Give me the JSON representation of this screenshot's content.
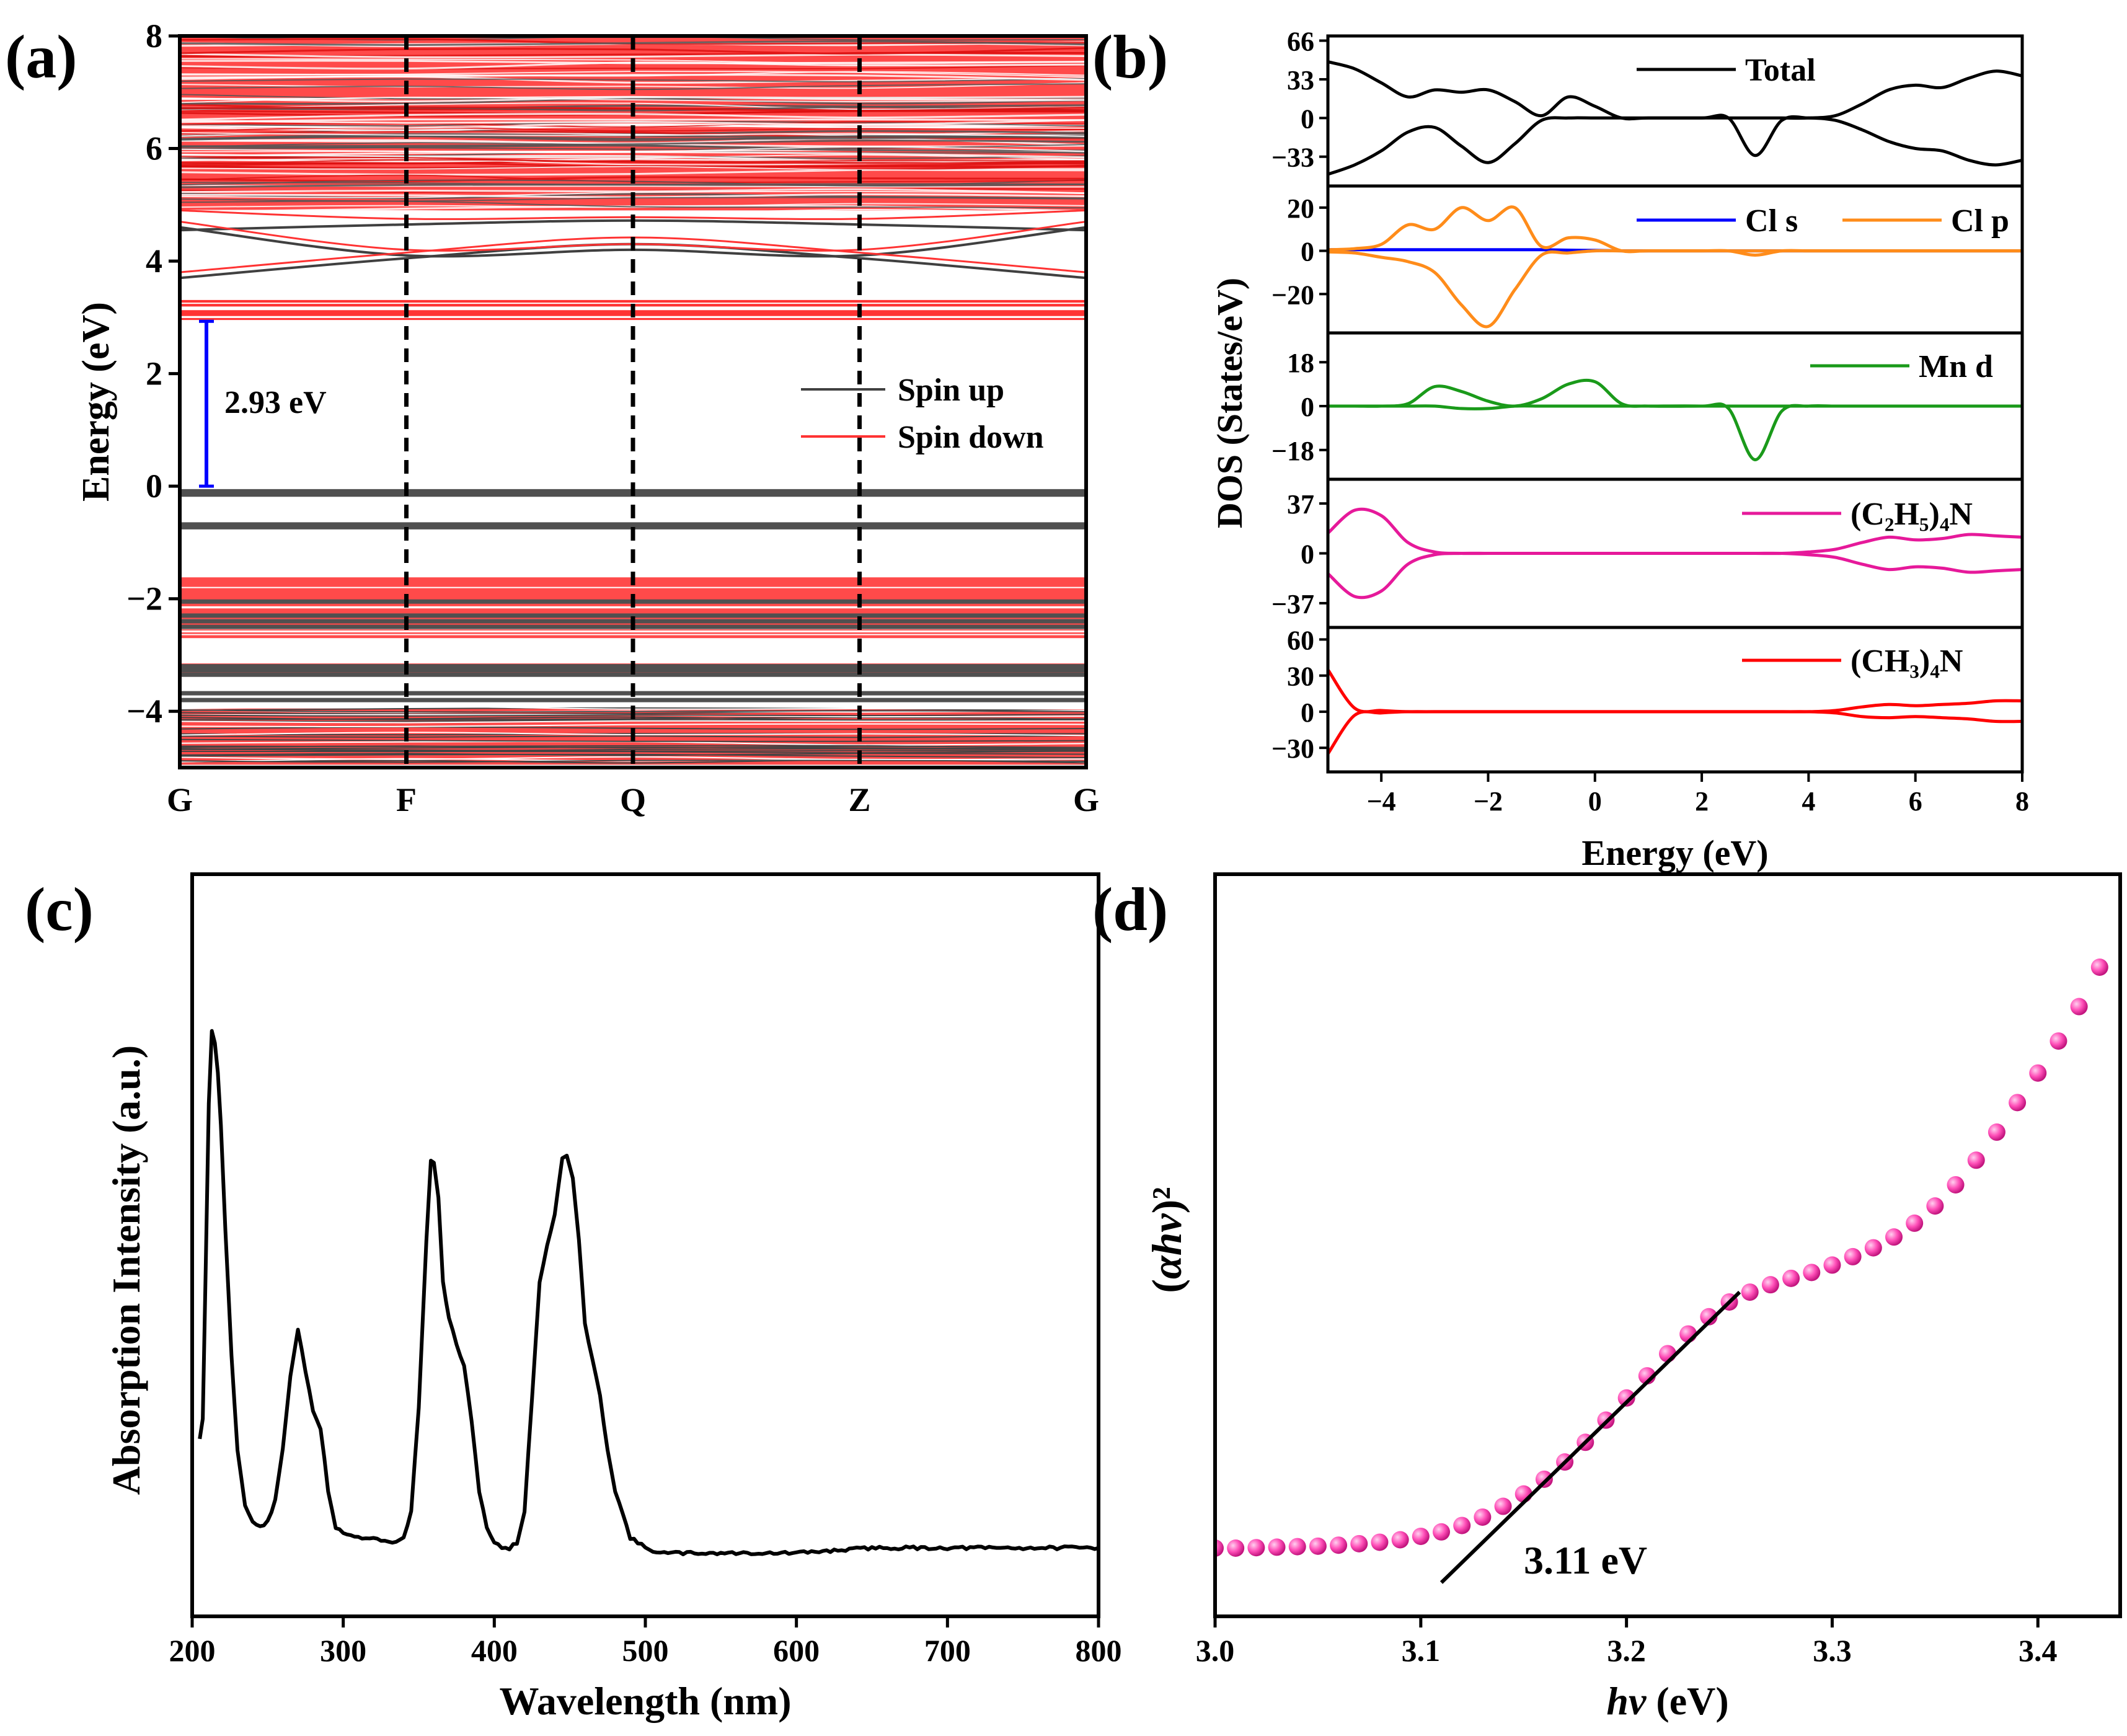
{
  "chart_data": [
    {
      "panel": "(a)",
      "type": "line",
      "title": "",
      "xlabel": "",
      "ylabel": "Energy (eV)",
      "ylim": [
        -5,
        8
      ],
      "yticks": [
        -4,
        -2,
        0,
        2,
        4,
        6,
        8
      ],
      "ytick_labels": [
        "−4",
        "−2",
        "0",
        "2",
        "4",
        "6",
        "8"
      ],
      "kpoints": [
        "G",
        "F",
        "Q",
        "Z",
        "G"
      ],
      "kpoint_dividers": [
        "F",
        "Q",
        "Z"
      ],
      "legend": [
        {
          "name": "Spin up",
          "color": "#404040"
        },
        {
          "name": "Spin down",
          "color": "#ff3333"
        }
      ],
      "gap": {
        "label": "2.93 eV",
        "from": 0,
        "to": 2.93,
        "color": "#0000ff"
      },
      "valence_bands": {
        "spin_down": [
          [
            -4.95,
            -3.95
          ],
          [
            -3.38,
            -3.15
          ],
          [
            -2.7,
            -1.62
          ]
        ],
        "spin_up": [
          -0.15,
          -0.09,
          -0.73,
          -0.68,
          -2.05,
          -2.3,
          -2.4,
          -2.5,
          -3.2,
          -3.27,
          -3.35,
          -3.68,
          -3.8
        ]
      },
      "flat_bands": {
        "spin_down": [
          2.98,
          3.05,
          3.1,
          3.22,
          3.28
        ],
        "spin_up": [
          3.0,
          3.15,
          3.25
        ]
      },
      "dispersive_bands": {
        "spin_up": [
          [
            3.7,
            4.05,
            4.3,
            4.05,
            3.7
          ],
          [
            4.55,
            4.65,
            4.72,
            4.65,
            4.55
          ],
          [
            4.6,
            4.1,
            4.2,
            4.1,
            4.6
          ]
        ],
        "spin_down": [
          [
            3.8,
            4.15,
            4.42,
            4.15,
            3.8
          ],
          [
            4.9,
            4.75,
            4.78,
            4.75,
            4.9
          ],
          [
            4.7,
            4.2,
            4.3,
            4.2,
            4.7
          ]
        ]
      },
      "conduction_band_region": [
        4.9,
        8.0
      ]
    },
    {
      "panel": "(b)",
      "type": "line",
      "title": "",
      "xlabel": "Energy (eV)",
      "ylabel": "DOS (States/eV)",
      "xlim": [
        -5,
        8
      ],
      "xticks": [
        -4,
        -2,
        0,
        2,
        4,
        6,
        8
      ],
      "xtick_labels": [
        "−4",
        "−2",
        "0",
        "2",
        "4",
        "6",
        "8"
      ],
      "x": [
        -5.0,
        -4.5,
        -4.0,
        -3.5,
        -3.0,
        -2.5,
        -2.0,
        -1.5,
        -1.0,
        -0.5,
        0.0,
        0.5,
        1.0,
        2.0,
        2.5,
        3.0,
        3.5,
        4.0,
        4.5,
        5.0,
        5.5,
        6.0,
        6.5,
        7.0,
        7.5,
        8.0
      ],
      "subplots": [
        {
          "name": "Total",
          "ylim": [
            -58,
            70
          ],
          "yticks": [
            66,
            33,
            0,
            -33
          ],
          "ytick_labels": [
            "66",
            "33",
            "0",
            "−33"
          ],
          "series": [
            {
              "name": "Total",
              "color": "#000000",
              "show_legend": true,
              "values": [
                48,
                42,
                30,
                18,
                24,
                22,
                24,
                14,
                2,
                18,
                10,
                0,
                0,
                0,
                0,
                0,
                0,
                0,
                2,
                12,
                24,
                28,
                26,
                34,
                40,
                36
              ]
            },
            {
              "name": "Total (spin down)",
              "color": "#000000",
              "show_legend": false,
              "values": [
                -48,
                -40,
                -28,
                -12,
                -8,
                -24,
                -38,
                -22,
                -2,
                0,
                0,
                0,
                0,
                0,
                0,
                -32,
                -2,
                0,
                -2,
                -10,
                -20,
                -26,
                -28,
                -36,
                -40,
                -36
              ]
            }
          ]
        },
        {
          "name": "Cl",
          "ylim": [
            -38,
            30
          ],
          "yticks": [
            20,
            0,
            -20
          ],
          "ytick_labels": [
            "20",
            "0",
            "−20"
          ],
          "series": [
            {
              "name": "Cl s",
              "color": "#0000ff",
              "show_legend": true,
              "values": [
                0.5,
                0.5,
                0.5,
                0.5,
                0.5,
                0.5,
                0.5,
                0.5,
                0.5,
                0.3,
                0.2,
                0,
                0,
                0,
                0,
                0,
                0,
                0,
                0,
                0,
                0,
                0,
                0,
                0,
                0,
                0
              ]
            },
            {
              "name": "Cl p",
              "color": "#ff8c1a",
              "show_legend": true,
              "values": [
                0.5,
                1,
                3,
                12,
                10,
                20,
                14,
                20,
                2,
                6,
                5,
                0,
                0,
                0,
                0,
                0,
                0,
                0,
                0,
                0,
                0,
                0,
                0,
                0,
                0,
                0
              ]
            },
            {
              "name": "Cl p (spin down)",
              "color": "#ff8c1a",
              "show_legend": false,
              "values": [
                -0.5,
                -1,
                -3,
                -5,
                -10,
                -25,
                -35,
                -18,
                -2,
                -1,
                0,
                0,
                0,
                0,
                0,
                -2,
                0,
                0,
                0,
                0,
                0,
                0,
                0,
                0,
                0,
                0
              ]
            }
          ]
        },
        {
          "name": "Mn d",
          "ylim": [
            -30,
            30
          ],
          "yticks": [
            18,
            0,
            -18
          ],
          "ytick_labels": [
            "18",
            "0",
            "−18"
          ],
          "series": [
            {
              "name": "Mn d",
              "color": "#1a9a1a",
              "show_legend": true,
              "values": [
                0,
                0,
                0,
                1,
                8,
                6,
                2,
                0,
                3,
                9,
                10,
                1,
                0,
                0,
                0,
                0,
                0,
                0,
                0,
                0,
                0,
                0,
                0,
                0,
                0,
                0
              ]
            },
            {
              "name": "Mn d (spin down)",
              "color": "#1a9a1a",
              "show_legend": false,
              "values": [
                0,
                0,
                0,
                0,
                0,
                -1,
                -1,
                0,
                0,
                0,
                0,
                0,
                0,
                0,
                -1,
                -22,
                -2,
                0,
                0,
                0,
                0,
                0,
                0,
                0,
                0,
                0
              ]
            }
          ]
        },
        {
          "name": "(C₂H₅)₄N",
          "ylim": [
            -55,
            55
          ],
          "yticks": [
            37,
            0,
            -37
          ],
          "ytick_labels": [
            "37",
            "0",
            "−37"
          ],
          "series": [
            {
              "name": "(C₂H₅)₄N",
              "color": "#e6199a",
              "show_legend": true,
              "values": [
                15,
                32,
                28,
                8,
                1,
                0,
                0,
                0,
                0,
                0,
                0,
                0,
                0,
                0,
                0,
                0,
                0,
                1,
                3,
                8,
                12,
                10,
                11,
                14,
                13,
                12
              ]
            },
            {
              "name": "(C₂H₅)₄N (spin down)",
              "color": "#e6199a",
              "show_legend": false,
              "values": [
                -15,
                -32,
                -28,
                -8,
                -1,
                0,
                0,
                0,
                0,
                0,
                0,
                0,
                0,
                0,
                0,
                0,
                0,
                -1,
                -3,
                -8,
                -12,
                -10,
                -11,
                -14,
                -13,
                -12
              ]
            }
          ]
        },
        {
          "name": "(CH₃)₄N",
          "ylim": [
            -50,
            70
          ],
          "yticks": [
            60,
            30,
            0,
            -30
          ],
          "ytick_labels": [
            "60",
            "30",
            "0",
            "−30"
          ],
          "series": [
            {
              "name": "(CH₃)₄N",
              "color": "#ff0000",
              "show_legend": true,
              "values": [
                35,
                3,
                1,
                0,
                0,
                0,
                0,
                0,
                0,
                0,
                0,
                0,
                0,
                0,
                0,
                0,
                0,
                0,
                1,
                4,
                6,
                5,
                6,
                7,
                9,
                9
              ]
            },
            {
              "name": "(CH₃)₄N (spin down)",
              "color": "#ff0000",
              "show_legend": false,
              "values": [
                -35,
                -3,
                -1,
                0,
                0,
                0,
                0,
                0,
                0,
                0,
                0,
                0,
                0,
                0,
                0,
                0,
                0,
                0,
                -1,
                -4,
                -5,
                -4,
                -5,
                -6,
                -8,
                -8
              ]
            }
          ]
        }
      ]
    },
    {
      "panel": "(c)",
      "type": "line",
      "title": "",
      "xlabel": "Wavelength (nm)",
      "ylabel": "Absorption Intensity (a.u.)",
      "xlim": [
        200,
        800
      ],
      "xticks": [
        200,
        300,
        400,
        500,
        600,
        700,
        800
      ],
      "xtick_labels": [
        "200",
        "300",
        "400",
        "500",
        "600",
        "700",
        "800"
      ],
      "ylim": [
        0,
        1.15
      ],
      "color": "#000000",
      "x": [
        205,
        207,
        209,
        211,
        213,
        215,
        217,
        219,
        222,
        226,
        230,
        235,
        240,
        245,
        250,
        255,
        260,
        265,
        270,
        275,
        280,
        285,
        290,
        295,
        300,
        310,
        320,
        330,
        335,
        340,
        345,
        350,
        355,
        358,
        360,
        363,
        366,
        370,
        375,
        380,
        385,
        390,
        395,
        400,
        405,
        410,
        415,
        420,
        425,
        430,
        435,
        440,
        445,
        448,
        452,
        456,
        460,
        465,
        470,
        475,
        480,
        490,
        500,
        510,
        520,
        550,
        600,
        650,
        700,
        750,
        800
      ],
      "values": [
        0.22,
        0.26,
        0.55,
        0.86,
        1.0,
        0.98,
        0.92,
        0.82,
        0.62,
        0.38,
        0.2,
        0.09,
        0.06,
        0.05,
        0.06,
        0.1,
        0.2,
        0.34,
        0.43,
        0.35,
        0.27,
        0.24,
        0.12,
        0.05,
        0.04,
        0.03,
        0.03,
        0.02,
        0.02,
        0.03,
        0.08,
        0.28,
        0.6,
        0.75,
        0.75,
        0.68,
        0.52,
        0.45,
        0.4,
        0.36,
        0.25,
        0.12,
        0.05,
        0.02,
        0.01,
        0.01,
        0.02,
        0.08,
        0.3,
        0.52,
        0.59,
        0.65,
        0.76,
        0.76,
        0.72,
        0.6,
        0.44,
        0.37,
        0.3,
        0.2,
        0.12,
        0.03,
        0.01,
        0.0,
        0.0,
        0.0,
        0.0,
        0.01,
        0.01,
        0.01,
        0.01
      ]
    },
    {
      "panel": "(d)",
      "type": "scatter",
      "title": "",
      "xlabel": "hv (eV)",
      "ylabel": "(αhv)²",
      "xlim": [
        3.0,
        3.44
      ],
      "xticks": [
        3.0,
        3.1,
        3.2,
        3.3,
        3.4
      ],
      "xtick_labels": [
        "3.0",
        "3.1",
        "3.2",
        "3.3",
        "3.4"
      ],
      "ylim": [
        -0.1,
        1.25
      ],
      "marker_color": "#ff4fb8",
      "x": [
        3.0,
        3.01,
        3.02,
        3.03,
        3.04,
        3.05,
        3.06,
        3.07,
        3.08,
        3.09,
        3.1,
        3.11,
        3.12,
        3.13,
        3.14,
        3.15,
        3.16,
        3.17,
        3.18,
        3.19,
        3.2,
        3.21,
        3.22,
        3.23,
        3.24,
        3.25,
        3.26,
        3.27,
        3.28,
        3.29,
        3.3,
        3.31,
        3.32,
        3.33,
        3.34,
        3.35,
        3.36,
        3.37,
        3.38,
        3.39,
        3.4,
        3.41,
        3.42,
        3.43
      ],
      "values": [
        0.0,
        0.0,
        0.001,
        0.002,
        0.003,
        0.004,
        0.006,
        0.009,
        0.012,
        0.017,
        0.024,
        0.033,
        0.046,
        0.063,
        0.085,
        0.11,
        0.14,
        0.175,
        0.215,
        0.26,
        0.305,
        0.35,
        0.395,
        0.435,
        0.47,
        0.5,
        0.52,
        0.535,
        0.548,
        0.56,
        0.575,
        0.592,
        0.61,
        0.632,
        0.66,
        0.695,
        0.738,
        0.788,
        0.845,
        0.905,
        0.965,
        1.03,
        1.1,
        1.18
      ],
      "fit_line": {
        "x": [
          3.11,
          3.255
        ],
        "y": [
          -0.07,
          0.52
        ],
        "color": "#000000",
        "label": "3.11 eV"
      }
    }
  ]
}
